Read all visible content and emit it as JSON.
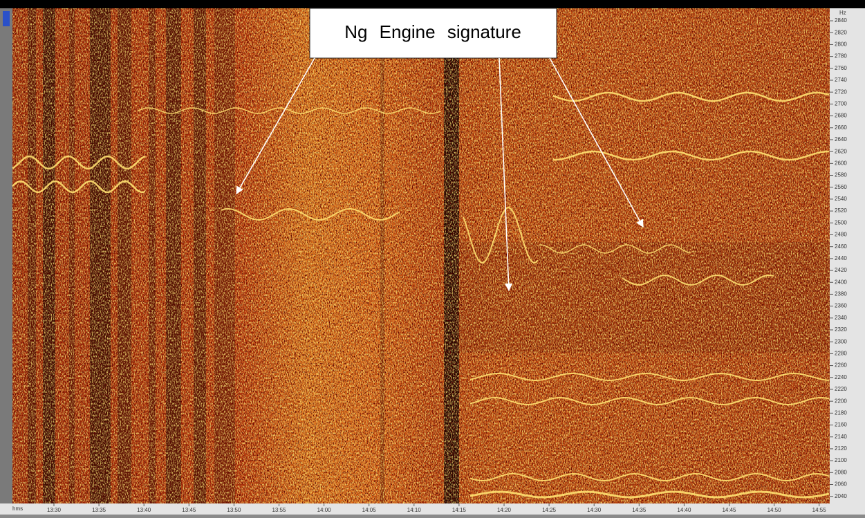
{
  "chart_data": {
    "type": "spectrogram",
    "annotation": "Ng Engine signature",
    "y_unit": "Hz",
    "x_unit": "hms",
    "ylim": [
      2028,
      2861
    ],
    "yticks": [
      2040,
      2060,
      2080,
      2100,
      2120,
      2140,
      2160,
      2180,
      2200,
      2220,
      2240,
      2260,
      2280,
      2300,
      2320,
      2340,
      2360,
      2380,
      2400,
      2420,
      2440,
      2460,
      2480,
      2500,
      2520,
      2540,
      2560,
      2580,
      2600,
      2620,
      2640,
      2660,
      2680,
      2700,
      2720,
      2740,
      2760,
      2780,
      2800,
      2820,
      2840
    ],
    "xticks": [
      "13:30",
      "13:35",
      "13:40",
      "13:45",
      "13:50",
      "13:55",
      "14:00",
      "14:05",
      "14:10",
      "14:15",
      "14:20",
      "14:25",
      "14:30",
      "14:35",
      "14:40",
      "14:45",
      "14:50",
      "14:55"
    ]
  }
}
